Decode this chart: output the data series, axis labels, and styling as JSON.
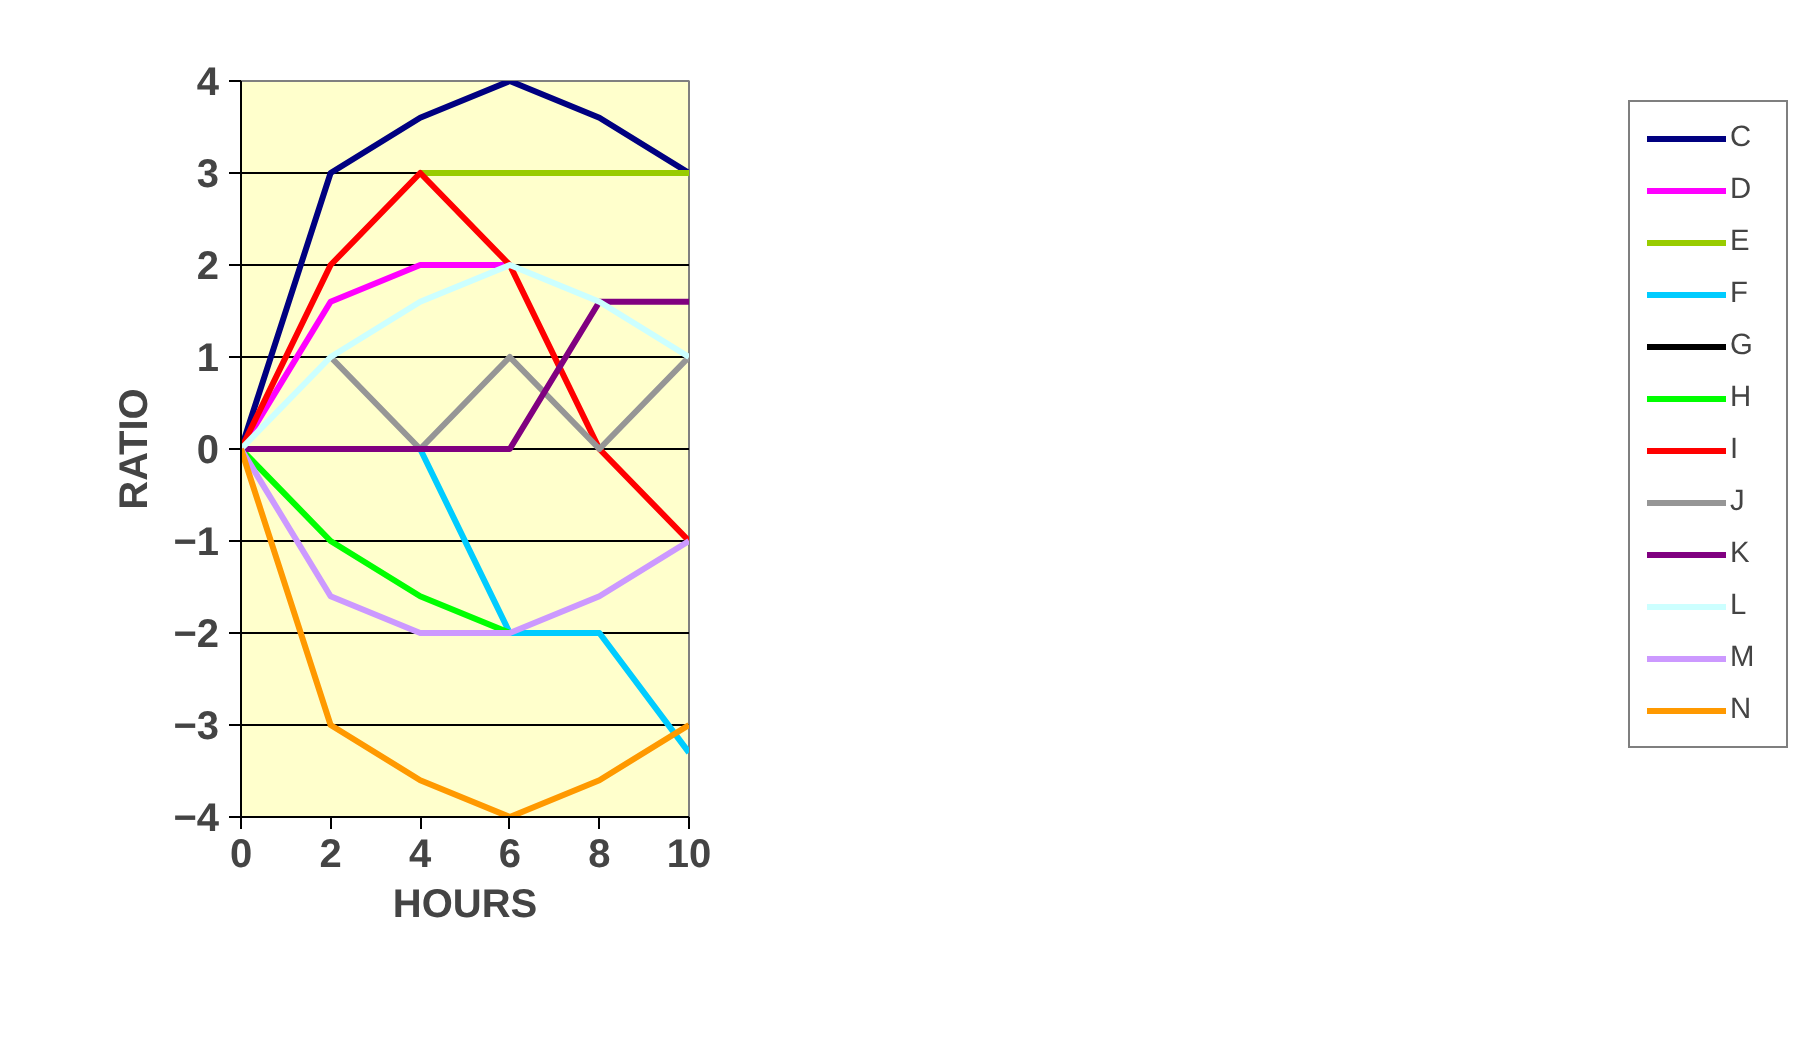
{
  "chart_data": {
    "type": "line",
    "xlabel": "HOURS",
    "ylabel": "RATIO",
    "x": [
      0,
      2,
      4,
      6,
      8,
      10
    ],
    "xlim": [
      0,
      10
    ],
    "xticks": [
      0,
      2,
      4,
      6,
      8,
      10
    ],
    "ylim": [
      -4,
      4
    ],
    "yticks": [
      -4,
      -3,
      -2,
      -1,
      0,
      1,
      2,
      3,
      4
    ],
    "grid": "y",
    "legend": "right",
    "marker": "none",
    "line_style": "solid",
    "series": [
      {
        "name": "C",
        "color": "#000080",
        "values": [
          0,
          3,
          3.6,
          4,
          3.6,
          3
        ]
      },
      {
        "name": "D",
        "color": "#ff00ff",
        "values": [
          0,
          1.6,
          2,
          2,
          null,
          null
        ]
      },
      {
        "name": "E",
        "color": "#99cc00",
        "values": [
          null,
          null,
          3,
          3,
          3,
          3
        ]
      },
      {
        "name": "F",
        "color": "#00ccff",
        "values": [
          null,
          null,
          0,
          -2,
          -2,
          -3.3
        ]
      },
      {
        "name": "G",
        "color": "#000000",
        "values": [
          null,
          null,
          null,
          null,
          null,
          null
        ]
      },
      {
        "name": "H",
        "color": "#00ff00",
        "values": [
          0,
          -1,
          -1.6,
          -2,
          null,
          null
        ]
      },
      {
        "name": "I",
        "color": "#ff0000",
        "values": [
          0,
          2,
          3,
          2,
          0,
          -1
        ]
      },
      {
        "name": "J",
        "color": "#969696",
        "values": [
          null,
          1,
          0,
          1,
          0,
          1
        ]
      },
      {
        "name": "K",
        "color": "#800080",
        "values": [
          0,
          0,
          0,
          0,
          1.6,
          1.6
        ]
      },
      {
        "name": "L",
        "color": "#ccffff",
        "values": [
          0,
          1,
          1.6,
          2,
          1.6,
          1
        ]
      },
      {
        "name": "M",
        "color": "#cc99ff",
        "values": [
          0,
          -1.6,
          -2,
          -2,
          -1.6,
          -1
        ]
      },
      {
        "name": "N",
        "color": "#ff9900",
        "values": [
          0,
          -3,
          -3.6,
          -4,
          -3.6,
          -3
        ]
      }
    ]
  }
}
